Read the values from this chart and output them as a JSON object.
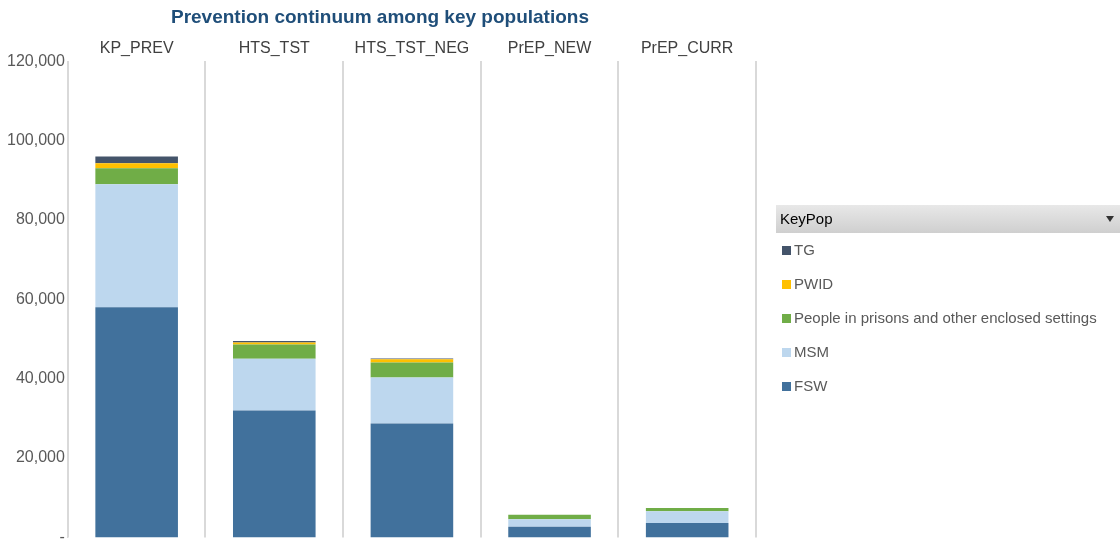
{
  "chart_data": {
    "type": "bar",
    "title": "Prevention continuum among key populations",
    "categories": [
      "KP_PREV",
      "HTS_TST",
      "HTS_TST_NEG",
      "PrEP_NEW",
      "PrEP_CURR"
    ],
    "stacked": true,
    "series": [
      {
        "name": "FSW",
        "color": "#41719c",
        "values": [
          58000,
          32000,
          28700,
          2700,
          3600
        ]
      },
      {
        "name": "MSM",
        "color": "#bdd7ee",
        "values": [
          31000,
          13000,
          11600,
          1900,
          3000
        ]
      },
      {
        "name": "People in prisons and other enclosed settings",
        "color": "#70ad47",
        "values": [
          4000,
          3600,
          3800,
          1100,
          800
        ]
      },
      {
        "name": "PWID",
        "color": "#ffc000",
        "values": [
          1300,
          500,
          800,
          0,
          0
        ]
      },
      {
        "name": "TG",
        "color": "#44546a",
        "values": [
          1700,
          400,
          200,
          0,
          0
        ]
      }
    ],
    "ylim": [
      0,
      120000
    ],
    "yticks": [
      {
        "value": 0,
        "label": "-"
      },
      {
        "value": 20000,
        "label": "20,000"
      },
      {
        "value": 40000,
        "label": "40,000"
      },
      {
        "value": 60000,
        "label": "60,000"
      },
      {
        "value": 80000,
        "label": "80,000"
      },
      {
        "value": 100000,
        "label": "100,000"
      },
      {
        "value": 120000,
        "label": "120,000"
      }
    ],
    "grid": "x",
    "legend": "right",
    "legend_title": "KeyPop"
  }
}
